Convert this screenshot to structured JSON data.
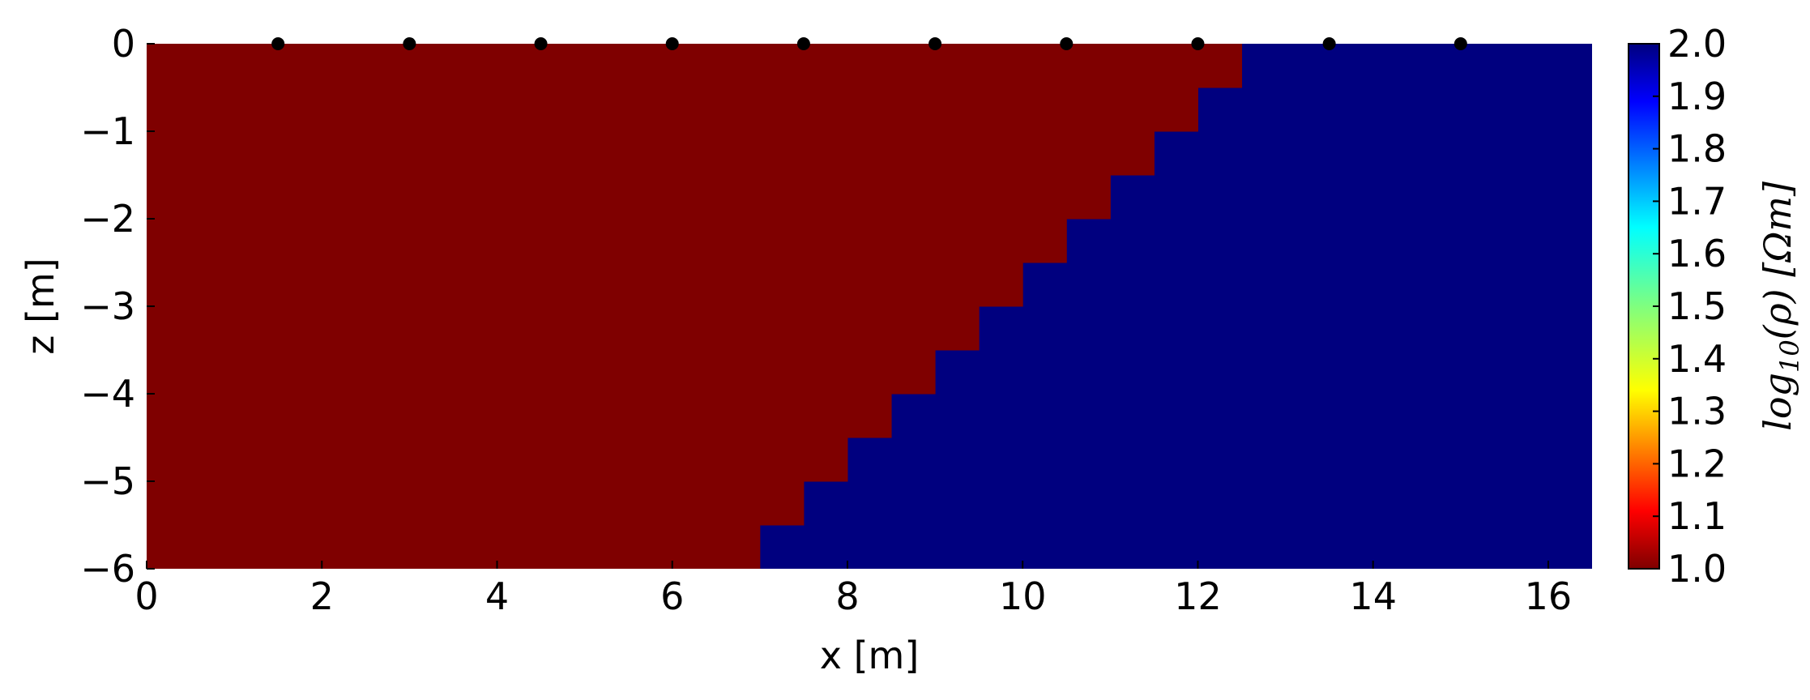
{
  "chart_data": {
    "type": "heatmap",
    "title": "",
    "xlabel": "x [m]",
    "ylabel": "z [m]",
    "xlim": [
      0,
      16.5
    ],
    "ylim": [
      -6,
      0
    ],
    "xticks": [
      0,
      2,
      4,
      6,
      8,
      10,
      12,
      14,
      16
    ],
    "yticks": [
      0,
      -1,
      -2,
      -3,
      -4,
      -5,
      -6
    ],
    "grid": false,
    "cell_size": [
      0.5,
      0.5
    ],
    "interface": {
      "description_values": "x position of the boundary between low (left) and high (right) resistivity for each 0.5 m depth row",
      "rows": [
        {
          "z_top": 0,
          "z_bottom": -0.5,
          "x_boundary": 12.5
        },
        {
          "z_top": -0.5,
          "z_bottom": -1,
          "x_boundary": 12
        },
        {
          "z_top": -1,
          "z_bottom": -1.5,
          "x_boundary": 11.5
        },
        {
          "z_top": -1.5,
          "z_bottom": -2,
          "x_boundary": 11
        },
        {
          "z_top": -2,
          "z_bottom": -2.5,
          "x_boundary": 10.5
        },
        {
          "z_top": -2.5,
          "z_bottom": -3,
          "x_boundary": 10
        },
        {
          "z_top": -3,
          "z_bottom": -3.5,
          "x_boundary": 9.5
        },
        {
          "z_top": -3.5,
          "z_bottom": -4,
          "x_boundary": 9
        },
        {
          "z_top": -4,
          "z_bottom": -4.5,
          "x_boundary": 8.5
        },
        {
          "z_top": -4.5,
          "z_bottom": -5,
          "x_boundary": 8
        },
        {
          "z_top": -5,
          "z_bottom": -5.5,
          "x_boundary": 7.5
        },
        {
          "z_top": -5.5,
          "z_bottom": -6,
          "x_boundary": 7
        }
      ],
      "left_value": 1.0,
      "right_value": 2.0
    },
    "electrodes": {
      "z": 0,
      "x": [
        1.5,
        3,
        4.5,
        6,
        7.5,
        9,
        10.5,
        12,
        13.5,
        15
      ]
    },
    "colorbar": {
      "label": "log10(ρ) [Ωm]",
      "label_parts": {
        "base": "log",
        "sub": "10",
        "rest": "(ρ) [Ωm]"
      },
      "colormap": "jet",
      "range": [
        1.0,
        2.0
      ],
      "ticks": [
        "1.0",
        "1.1",
        "1.2",
        "1.3",
        "1.4",
        "1.5",
        "1.6",
        "1.7",
        "1.8",
        "1.9",
        "2.0"
      ],
      "position": "right"
    },
    "colors": {
      "low": "#7f0000",
      "high": "#00007f",
      "electrode": "#000000"
    }
  }
}
